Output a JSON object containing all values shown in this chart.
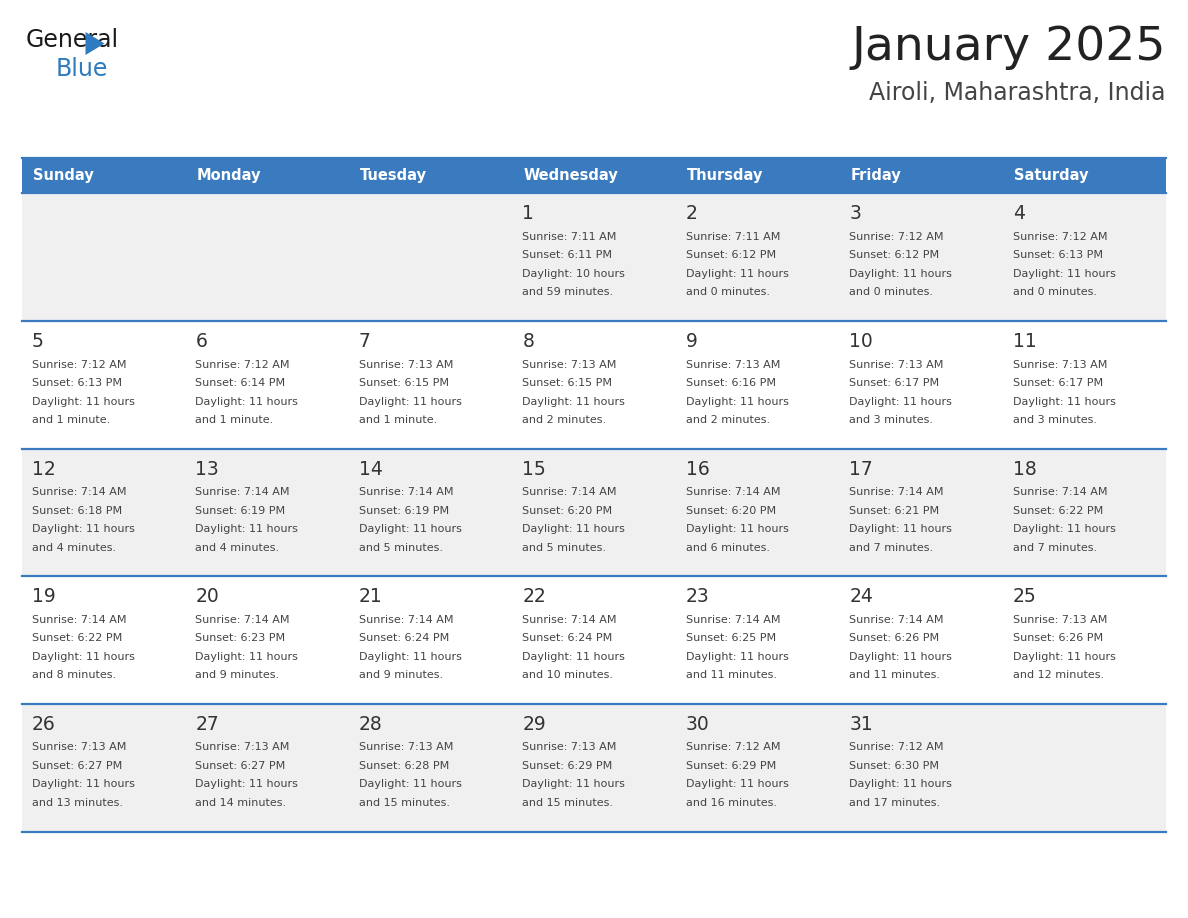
{
  "title": "January 2025",
  "subtitle": "Airoli, Maharashtra, India",
  "header_bg_color": "#3a7abf",
  "header_text_color": "#ffffff",
  "cell_bg_light": "#f0f0f0",
  "cell_bg_white": "#ffffff",
  "border_color": "#3a7abf",
  "title_color": "#222222",
  "subtitle_color": "#444444",
  "day_number_color": "#333333",
  "cell_text_color": "#444444",
  "days_of_week": [
    "Sunday",
    "Monday",
    "Tuesday",
    "Wednesday",
    "Thursday",
    "Friday",
    "Saturday"
  ],
  "calendar_data": [
    [
      null,
      null,
      null,
      {
        "day": "1",
        "sunrise": "7:11 AM",
        "sunset": "6:11 PM",
        "daylight_hrs": "10 hours",
        "daylight_min": "and 59 minutes."
      },
      {
        "day": "2",
        "sunrise": "7:11 AM",
        "sunset": "6:12 PM",
        "daylight_hrs": "11 hours",
        "daylight_min": "and 0 minutes."
      },
      {
        "day": "3",
        "sunrise": "7:12 AM",
        "sunset": "6:12 PM",
        "daylight_hrs": "11 hours",
        "daylight_min": "and 0 minutes."
      },
      {
        "day": "4",
        "sunrise": "7:12 AM",
        "sunset": "6:13 PM",
        "daylight_hrs": "11 hours",
        "daylight_min": "and 0 minutes."
      }
    ],
    [
      {
        "day": "5",
        "sunrise": "7:12 AM",
        "sunset": "6:13 PM",
        "daylight_hrs": "11 hours",
        "daylight_min": "and 1 minute."
      },
      {
        "day": "6",
        "sunrise": "7:12 AM",
        "sunset": "6:14 PM",
        "daylight_hrs": "11 hours",
        "daylight_min": "and 1 minute."
      },
      {
        "day": "7",
        "sunrise": "7:13 AM",
        "sunset": "6:15 PM",
        "daylight_hrs": "11 hours",
        "daylight_min": "and 1 minute."
      },
      {
        "day": "8",
        "sunrise": "7:13 AM",
        "sunset": "6:15 PM",
        "daylight_hrs": "11 hours",
        "daylight_min": "and 2 minutes."
      },
      {
        "day": "9",
        "sunrise": "7:13 AM",
        "sunset": "6:16 PM",
        "daylight_hrs": "11 hours",
        "daylight_min": "and 2 minutes."
      },
      {
        "day": "10",
        "sunrise": "7:13 AM",
        "sunset": "6:17 PM",
        "daylight_hrs": "11 hours",
        "daylight_min": "and 3 minutes."
      },
      {
        "day": "11",
        "sunrise": "7:13 AM",
        "sunset": "6:17 PM",
        "daylight_hrs": "11 hours",
        "daylight_min": "and 3 minutes."
      }
    ],
    [
      {
        "day": "12",
        "sunrise": "7:14 AM",
        "sunset": "6:18 PM",
        "daylight_hrs": "11 hours",
        "daylight_min": "and 4 minutes."
      },
      {
        "day": "13",
        "sunrise": "7:14 AM",
        "sunset": "6:19 PM",
        "daylight_hrs": "11 hours",
        "daylight_min": "and 4 minutes."
      },
      {
        "day": "14",
        "sunrise": "7:14 AM",
        "sunset": "6:19 PM",
        "daylight_hrs": "11 hours",
        "daylight_min": "and 5 minutes."
      },
      {
        "day": "15",
        "sunrise": "7:14 AM",
        "sunset": "6:20 PM",
        "daylight_hrs": "11 hours",
        "daylight_min": "and 5 minutes."
      },
      {
        "day": "16",
        "sunrise": "7:14 AM",
        "sunset": "6:20 PM",
        "daylight_hrs": "11 hours",
        "daylight_min": "and 6 minutes."
      },
      {
        "day": "17",
        "sunrise": "7:14 AM",
        "sunset": "6:21 PM",
        "daylight_hrs": "11 hours",
        "daylight_min": "and 7 minutes."
      },
      {
        "day": "18",
        "sunrise": "7:14 AM",
        "sunset": "6:22 PM",
        "daylight_hrs": "11 hours",
        "daylight_min": "and 7 minutes."
      }
    ],
    [
      {
        "day": "19",
        "sunrise": "7:14 AM",
        "sunset": "6:22 PM",
        "daylight_hrs": "11 hours",
        "daylight_min": "and 8 minutes."
      },
      {
        "day": "20",
        "sunrise": "7:14 AM",
        "sunset": "6:23 PM",
        "daylight_hrs": "11 hours",
        "daylight_min": "and 9 minutes."
      },
      {
        "day": "21",
        "sunrise": "7:14 AM",
        "sunset": "6:24 PM",
        "daylight_hrs": "11 hours",
        "daylight_min": "and 9 minutes."
      },
      {
        "day": "22",
        "sunrise": "7:14 AM",
        "sunset": "6:24 PM",
        "daylight_hrs": "11 hours",
        "daylight_min": "and 10 minutes."
      },
      {
        "day": "23",
        "sunrise": "7:14 AM",
        "sunset": "6:25 PM",
        "daylight_hrs": "11 hours",
        "daylight_min": "and 11 minutes."
      },
      {
        "day": "24",
        "sunrise": "7:14 AM",
        "sunset": "6:26 PM",
        "daylight_hrs": "11 hours",
        "daylight_min": "and 11 minutes."
      },
      {
        "day": "25",
        "sunrise": "7:13 AM",
        "sunset": "6:26 PM",
        "daylight_hrs": "11 hours",
        "daylight_min": "and 12 minutes."
      }
    ],
    [
      {
        "day": "26",
        "sunrise": "7:13 AM",
        "sunset": "6:27 PM",
        "daylight_hrs": "11 hours",
        "daylight_min": "and 13 minutes."
      },
      {
        "day": "27",
        "sunrise": "7:13 AM",
        "sunset": "6:27 PM",
        "daylight_hrs": "11 hours",
        "daylight_min": "and 14 minutes."
      },
      {
        "day": "28",
        "sunrise": "7:13 AM",
        "sunset": "6:28 PM",
        "daylight_hrs": "11 hours",
        "daylight_min": "and 15 minutes."
      },
      {
        "day": "29",
        "sunrise": "7:13 AM",
        "sunset": "6:29 PM",
        "daylight_hrs": "11 hours",
        "daylight_min": "and 15 minutes."
      },
      {
        "day": "30",
        "sunrise": "7:12 AM",
        "sunset": "6:29 PM",
        "daylight_hrs": "11 hours",
        "daylight_min": "and 16 minutes."
      },
      {
        "day": "31",
        "sunrise": "7:12 AM",
        "sunset": "6:30 PM",
        "daylight_hrs": "11 hours",
        "daylight_min": "and 17 minutes."
      },
      null
    ]
  ]
}
